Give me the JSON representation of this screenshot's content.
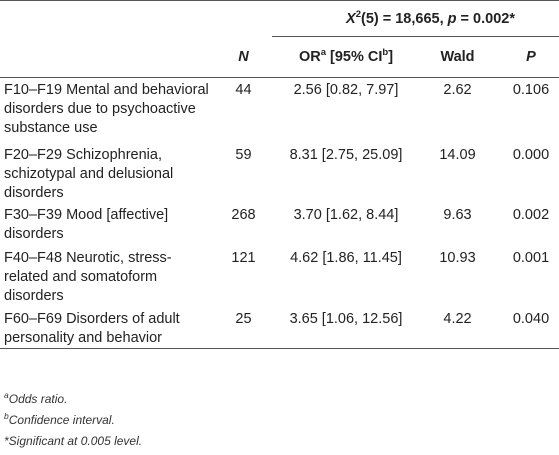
{
  "table": {
    "stat_header": {
      "chi_symbol": "X",
      "chi_exp": "2",
      "chi_rest": "(5) = 18,665, ",
      "p_symbol": "p",
      "p_rest": " = 0.002*"
    },
    "columns": {
      "n": "N",
      "or_main": "OR",
      "or_sup": "a",
      "or_mid": " [95% CI",
      "or_sup2": "b",
      "or_end": "]",
      "wald": "Wald",
      "p": "P"
    },
    "rows": [
      {
        "label": "F10–F19 Mental and behavioral disorders due to psychoactive substance use",
        "n": "44",
        "or": "2.56 [0.82, 7.97]",
        "wald": "2.62",
        "p": "0.106"
      },
      {
        "label": "F20–F29 Schizophrenia, schizotypal and delusional disorders",
        "n": "59",
        "or": "8.31 [2.75, 25.09]",
        "wald": "14.09",
        "p": "0.000"
      },
      {
        "label": "F30–F39 Mood [affective] disorders",
        "n": "268",
        "or": "3.70 [1.62, 8.44]",
        "wald": "9.63",
        "p": "0.002"
      },
      {
        "label": "F40–F48 Neurotic, stress-related and somatoform disorders",
        "n": "121",
        "or": "4.62 [1.86, 11.45]",
        "wald": "10.93",
        "p": "0.001"
      },
      {
        "label": "F60–F69 Disorders of adult personality and behavior",
        "n": "25",
        "or": "3.65 [1.06, 12.56]",
        "wald": "4.22",
        "p": "0.040"
      }
    ]
  },
  "notes": [
    {
      "mark": "a",
      "text": "Odds ratio."
    },
    {
      "mark": "b",
      "text": "Confidence interval."
    },
    {
      "mark": "",
      "text": "*Significant at 0.005 level."
    }
  ]
}
